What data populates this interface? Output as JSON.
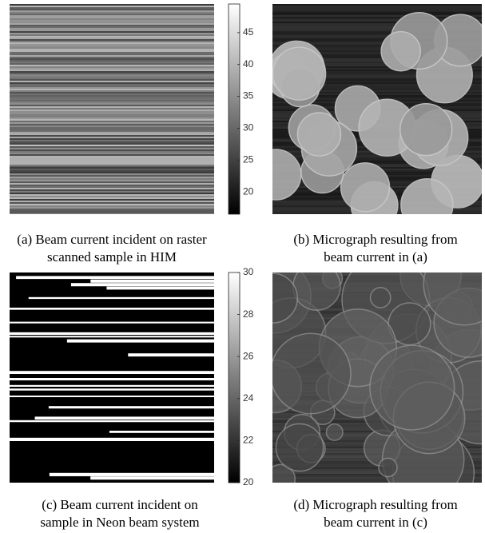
{
  "panels": [
    {
      "caption": [
        "(a) Beam current incident on raster",
        "scanned sample in HIM"
      ],
      "colorbar": {
        "lim": [
          16.5,
          49.5
        ],
        "ticks": [
          20,
          25,
          30,
          35,
          40,
          45
        ]
      }
    },
    {
      "caption": [
        "(b) Micrograph resulting from",
        "beam current in (a)"
      ]
    },
    {
      "caption": [
        "(c) Beam current incident on",
        "sample in Neon beam system"
      ],
      "colorbar": {
        "lim": [
          20,
          30
        ],
        "ticks": [
          20,
          22,
          24,
          26,
          28,
          30
        ]
      }
    },
    {
      "caption": [
        "(d) Micrograph resulting from",
        "beam current in (c)"
      ]
    }
  ]
}
